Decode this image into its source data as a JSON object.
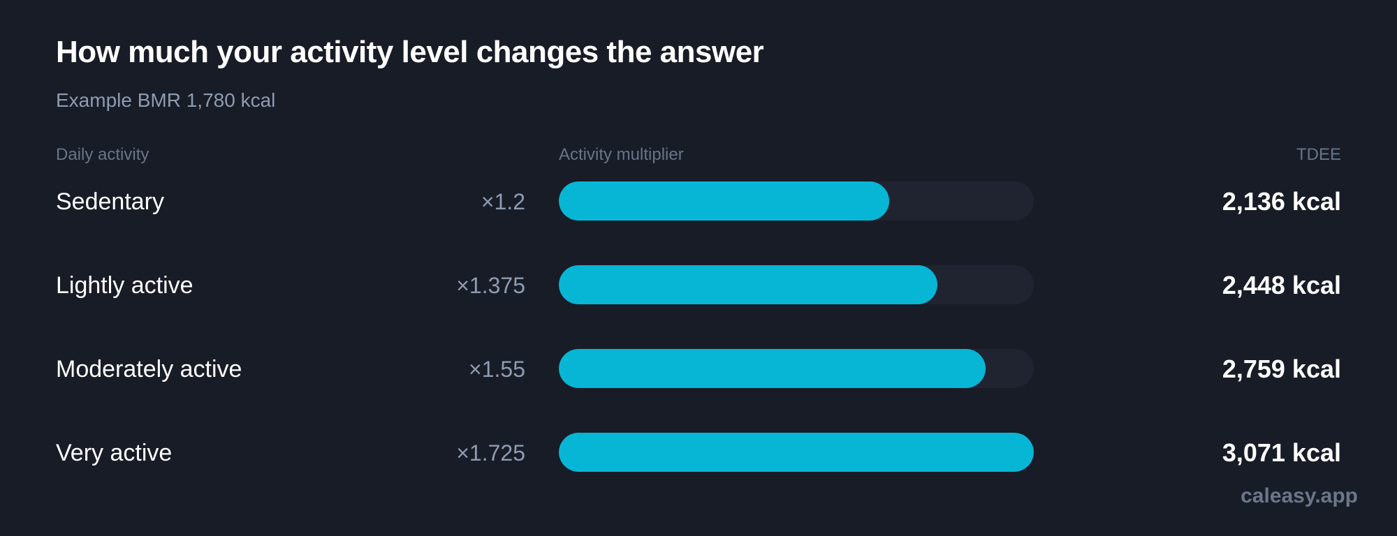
{
  "title": "How much your activity level changes the answer",
  "subtitle": "Example BMR 1,780 kcal",
  "headers": {
    "activity": "Daily activity",
    "multiplier": "Activity multiplier",
    "tdee": "TDEE"
  },
  "brand": "caleasy.app",
  "colors": {
    "background": "#181c27",
    "bar": "#07b6d5",
    "track": "#1f2430",
    "muted": "#8f9bb0"
  },
  "chart_data": {
    "type": "bar",
    "orientation": "horizontal",
    "xlim": [
      0,
      1.725
    ],
    "categories": [
      "Sedentary",
      "Lightly active",
      "Moderately active",
      "Very active"
    ],
    "values": [
      1.2,
      1.375,
      1.55,
      1.725
    ],
    "grid": false,
    "rows": [
      {
        "label": "Sedentary",
        "multiplier": 1.2,
        "multiplier_text": "×1.2",
        "tdee_text": "2,136 kcal"
      },
      {
        "label": "Lightly active",
        "multiplier": 1.375,
        "multiplier_text": "×1.375",
        "tdee_text": "2,448 kcal"
      },
      {
        "label": "Moderately active",
        "multiplier": 1.55,
        "multiplier_text": "×1.55",
        "tdee_text": "2,759 kcal"
      },
      {
        "label": "Very active",
        "multiplier": 1.725,
        "multiplier_text": "×1.725",
        "tdee_text": "3,071 kcal"
      }
    ]
  }
}
